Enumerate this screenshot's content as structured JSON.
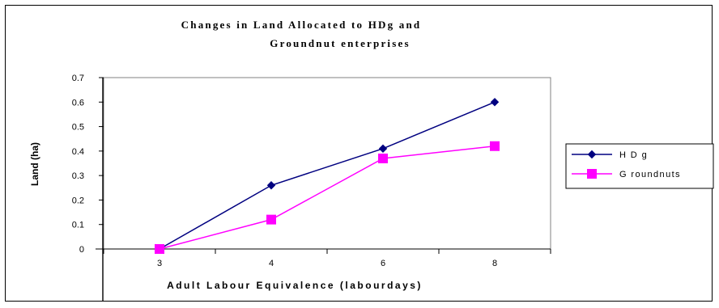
{
  "chart_data": {
    "type": "line",
    "title_lines": [
      "Changes in Land Allocated to HDg and",
      "Groundnut enterprises"
    ],
    "xlabel": "Adult Labour Equivalence (labourdays)",
    "ylabel": "Land (ha)",
    "categories": [
      "3",
      "4",
      "6",
      "8"
    ],
    "ylim": [
      0,
      0.7
    ],
    "yticks": [
      "0",
      "0.1",
      "0.2",
      "0.3",
      "0.4",
      "0.5",
      "0.6",
      "0.7"
    ],
    "legend_position": "right",
    "series": [
      {
        "name": "HDg",
        "legend_label": "H D g",
        "color": "#000080",
        "marker": "diamond",
        "values": [
          0,
          0.26,
          0.41,
          0.6
        ]
      },
      {
        "name": "Groundnuts",
        "legend_label": "G roundnuts",
        "color": "#FF00FF",
        "marker": "square",
        "values": [
          0,
          0.12,
          0.37,
          0.42
        ]
      }
    ]
  }
}
